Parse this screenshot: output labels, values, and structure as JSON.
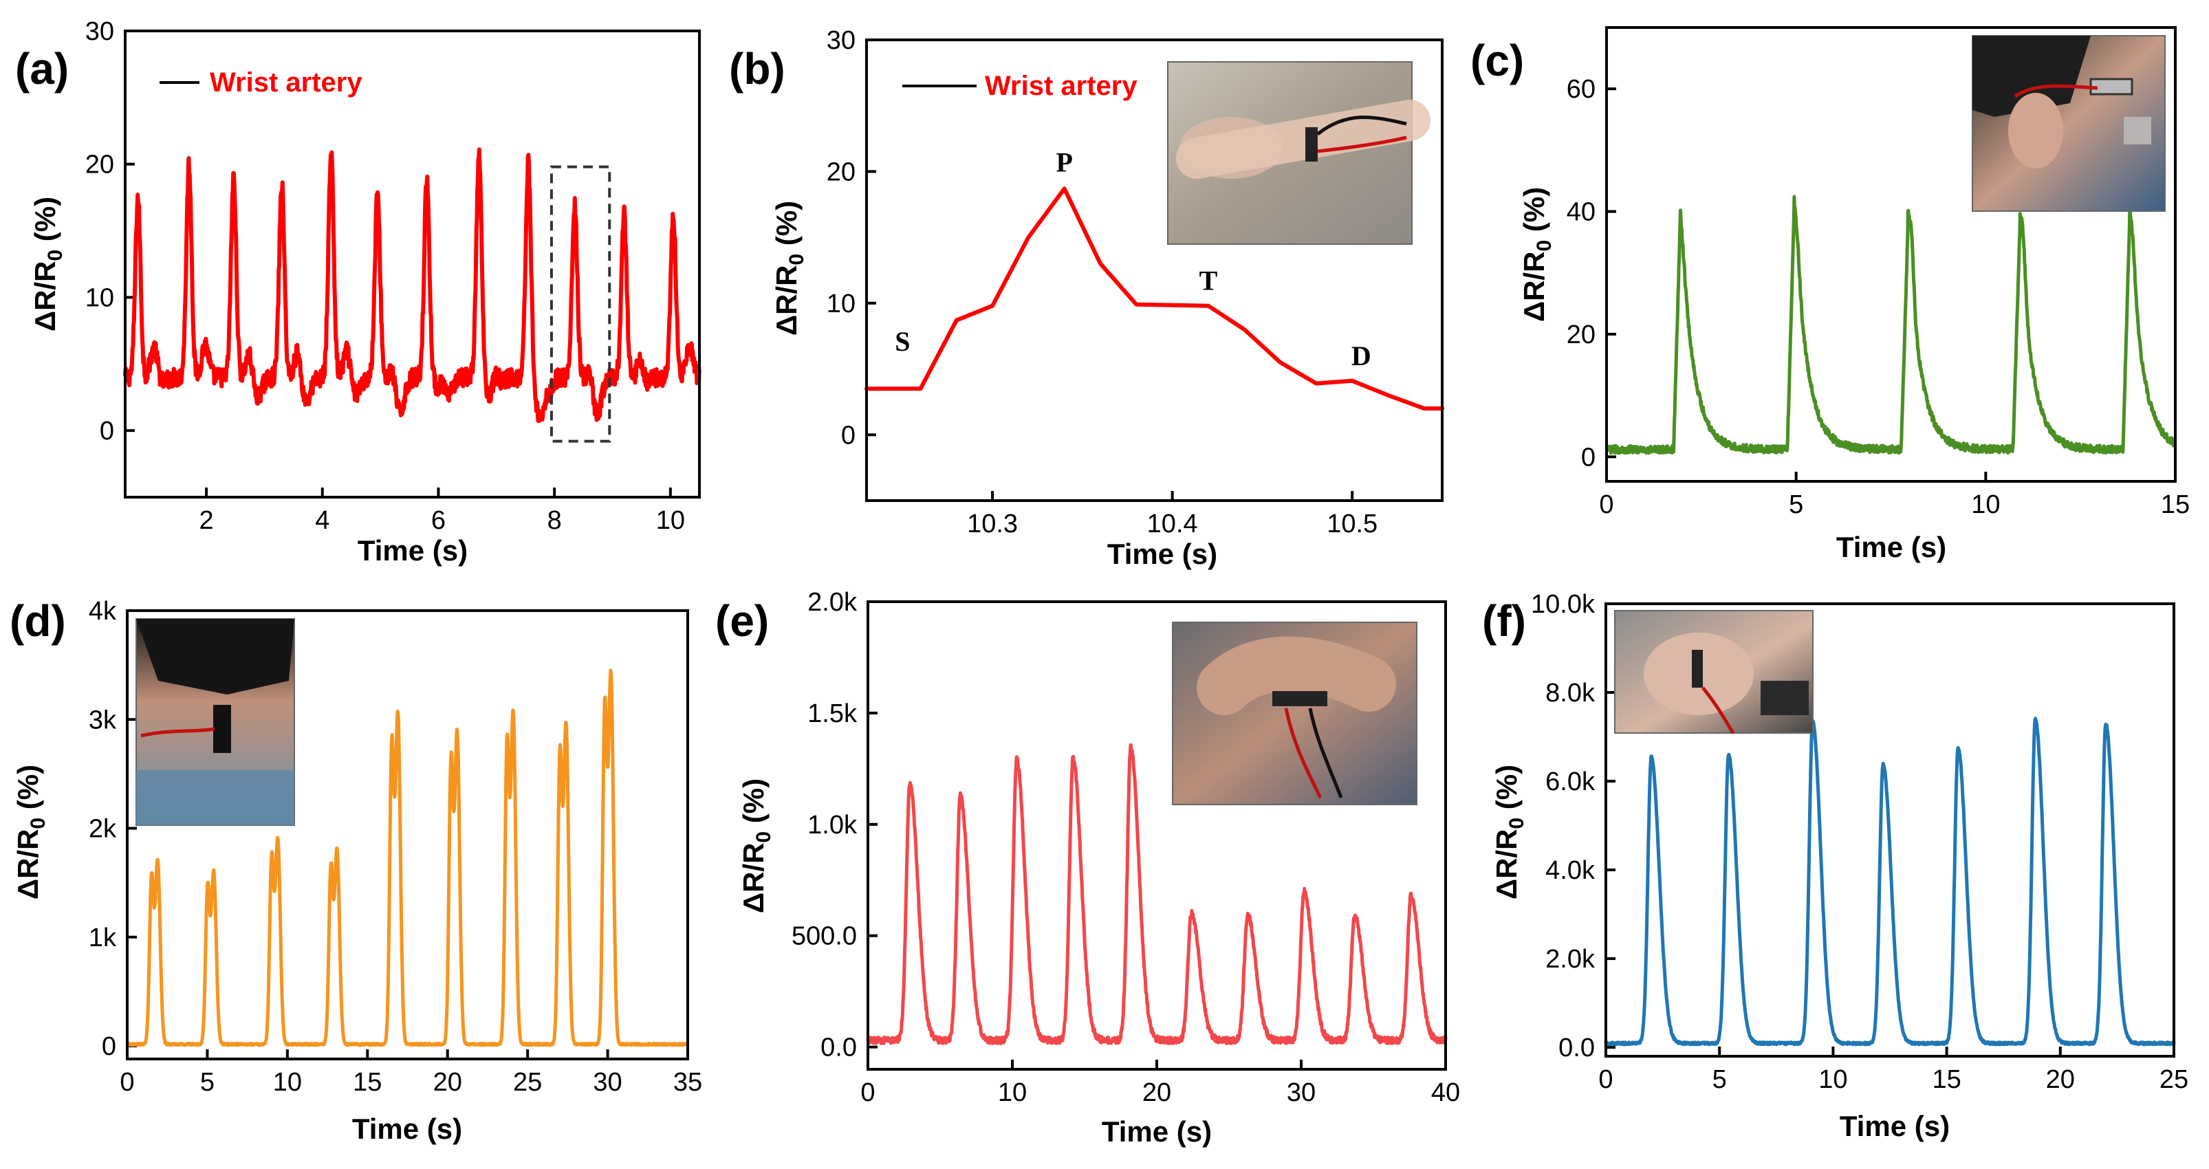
{
  "chart_data": [
    {
      "panel": "(a)",
      "type": "line",
      "color": "#ff0000",
      "xlabel": "Time (s)",
      "ylabel": "ΔR/R₀ (%)",
      "xlim": [
        0.6,
        10.5
      ],
      "ylim": [
        -5,
        30
      ],
      "xticks": [
        2,
        4,
        6,
        8,
        10
      ],
      "xtick_labels": [
        "2",
        "4",
        "6",
        "8",
        "10"
      ],
      "yticks": [
        0,
        10,
        20,
        30
      ],
      "ytick_labels": [
        "0",
        "10",
        "20",
        "30"
      ],
      "legend": "Wrist artery",
      "legend_position": "top-left",
      "highlight_box": {
        "x": [
          7.95,
          8.95
        ],
        "y": [
          -0.8,
          19.8
        ]
      },
      "series": [
        {
          "name": "Wrist artery",
          "baseline": 4,
          "noise": 0.7,
          "peak_width": 0.045,
          "peaks": [
            [
              0.82,
              17.5
            ],
            [
              1.7,
              20
            ],
            [
              2.47,
              19
            ],
            [
              3.3,
              18.5
            ],
            [
              4.15,
              21
            ],
            [
              4.95,
              17.8
            ],
            [
              5.8,
              19
            ],
            [
              6.7,
              20.8
            ],
            [
              7.55,
              20.3
            ],
            [
              8.35,
              16.8
            ],
            [
              9.2,
              16.3
            ],
            [
              10.05,
              16.3
            ]
          ],
          "troughs": [
            [
              1.2,
              3.5
            ],
            [
              2.0,
              4.0
            ],
            [
              2.85,
              2.2
            ],
            [
              3.7,
              2.0
            ],
            [
              4.55,
              2.5
            ],
            [
              5.3,
              0.5
            ],
            [
              6.1,
              0.8
            ],
            [
              6.95,
              1.5
            ],
            [
              7.8,
              -0.8
            ],
            [
              8.7,
              0.3
            ],
            [
              9.5,
              2.8
            ],
            [
              10.35,
              3.8
            ]
          ]
        }
      ]
    },
    {
      "panel": "(b)",
      "type": "line",
      "color": "#ff0000",
      "xlabel": "Time (s)",
      "ylabel": "ΔR/R₀ (%)",
      "xlim": [
        10.23,
        10.55
      ],
      "ylim": [
        -5,
        30
      ],
      "xticks": [
        10.3,
        10.4,
        10.5
      ],
      "xtick_labels": [
        "10.3",
        "10.4",
        "10.5"
      ],
      "yticks": [
        0,
        10,
        20,
        30
      ],
      "ytick_labels": [
        "0",
        "10",
        "20",
        "30"
      ],
      "legend": "Wrist artery",
      "legend_position": "top-left",
      "points": {
        "x": [
          10.23,
          10.26,
          10.28,
          10.3,
          10.32,
          10.34,
          10.36,
          10.38,
          10.42,
          10.44,
          10.46,
          10.48,
          10.5,
          10.52,
          10.54,
          10.55
        ],
        "y": [
          3.5,
          3.5,
          8.7,
          9.8,
          15.0,
          18.7,
          13.0,
          9.9,
          9.8,
          8.0,
          5.5,
          3.9,
          4.1,
          3.0,
          2.0,
          2.0
        ]
      },
      "annotations": [
        {
          "text": "S",
          "x": 10.25,
          "y": 6.4
        },
        {
          "text": "P",
          "x": 10.34,
          "y": 20.0
        },
        {
          "text": "T",
          "x": 10.42,
          "y": 11.0
        },
        {
          "text": "D",
          "x": 10.505,
          "y": 5.3
        }
      ],
      "inset_photo": "wrist with sensor"
    },
    {
      "panel": "(c)",
      "type": "line",
      "color": "#4a8f22",
      "xlabel": "Time (s)",
      "ylabel": "ΔR/R₀ (%)",
      "xlim": [
        0,
        15
      ],
      "ylim": [
        -4,
        70
      ],
      "xticks": [
        0,
        5,
        10,
        15
      ],
      "xtick_labels": [
        "0",
        "5",
        "10",
        "15"
      ],
      "yticks": [
        0,
        20,
        40,
        60
      ],
      "ytick_labels": [
        "0",
        "20",
        "40",
        "60"
      ],
      "inset_photo": "temple with sensor",
      "series": [
        {
          "baseline": 1.2,
          "noise": 0.6,
          "peaks": [
            [
              1.95,
              40,
              23
            ],
            [
              4.95,
              41,
              26
            ],
            [
              7.95,
              37.5,
              28.5
            ],
            [
              10.9,
              37.5,
              28
            ],
            [
              13.8,
              39.5,
              26
            ]
          ]
        }
      ]
    },
    {
      "panel": "(d)",
      "type": "line",
      "color": "#f7941d",
      "xlabel": "Time (s)",
      "ylabel": "ΔR/R₀ (%)",
      "xlim": [
        0,
        35
      ],
      "ylim": [
        -120,
        4000
      ],
      "xticks": [
        0,
        5,
        10,
        15,
        20,
        25,
        30,
        35
      ],
      "xtick_labels": [
        "0",
        "5",
        "10",
        "15",
        "20",
        "25",
        "30",
        "35"
      ],
      "yticks": [
        0,
        1000,
        2000,
        3000,
        4000
      ],
      "ytick_labels": [
        "0",
        "1k",
        "2k",
        "3k",
        "4k"
      ],
      "inset_photo": "neck with sensor",
      "series": [
        {
          "baseline": 15,
          "noise": 8,
          "peaks": [
            [
              1.9,
              1700
            ],
            [
              5.4,
              1600
            ],
            [
              9.4,
              1900
            ],
            [
              13.1,
              1800
            ],
            [
              16.9,
              3050
            ],
            [
              20.6,
              2880
            ],
            [
              24.1,
              3060
            ],
            [
              27.4,
              2950
            ],
            [
              30.2,
              3420
            ]
          ]
        }
      ]
    },
    {
      "panel": "(e)",
      "type": "line",
      "color": "#f2474b",
      "xlabel": "Time (s)",
      "ylabel": "ΔR/R₀ (%)",
      "xlim": [
        0,
        40
      ],
      "ylim": [
        -100,
        2000
      ],
      "xticks": [
        0,
        10,
        20,
        30,
        40
      ],
      "xtick_labels": [
        "0",
        "10",
        "20",
        "30",
        "40"
      ],
      "yticks": [
        0,
        500,
        1000,
        1500,
        2000
      ],
      "ytick_labels": [
        "0.0",
        "500.0",
        "1.0k",
        "1.5k",
        "2.0k"
      ],
      "inset_photo": "elbow with sensor",
      "series": [
        {
          "baseline": 30,
          "noise": 14,
          "peaks": [
            [
              2.9,
              1180
            ],
            [
              6.4,
              1130
            ],
            [
              10.3,
              1290
            ],
            [
              14.2,
              1300
            ],
            [
              18.2,
              1345
            ],
            [
              22.4,
              600
            ],
            [
              26.3,
              590
            ],
            [
              30.2,
              700
            ],
            [
              33.7,
              590
            ],
            [
              37.6,
              680
            ]
          ]
        }
      ]
    },
    {
      "panel": "(f)",
      "type": "line",
      "color": "#1f77b4",
      "xlabel": "Time (s)",
      "ylabel": "ΔR/R₀ (%)",
      "xlim": [
        0,
        25
      ],
      "ylim": [
        -200,
        10000
      ],
      "xticks": [
        0,
        5,
        10,
        15,
        20,
        25
      ],
      "xtick_labels": [
        "0",
        "5",
        "10",
        "15",
        "20",
        "25"
      ],
      "yticks": [
        0,
        2000,
        4000,
        6000,
        8000,
        10000
      ],
      "ytick_labels": [
        "0.0",
        "2.0k",
        "4.0k",
        "6.0k",
        "8.0k",
        "10.0k"
      ],
      "inset_photo": "knee with sensor",
      "series": [
        {
          "baseline": 90,
          "noise": 25,
          "peaks": [
            [
              2.0,
              6550
            ],
            [
              5.4,
              6600
            ],
            [
              9.1,
              7350
            ],
            [
              12.2,
              6380
            ],
            [
              15.5,
              6750
            ],
            [
              18.9,
              7400
            ],
            [
              22.0,
              7300
            ]
          ]
        }
      ]
    }
  ]
}
